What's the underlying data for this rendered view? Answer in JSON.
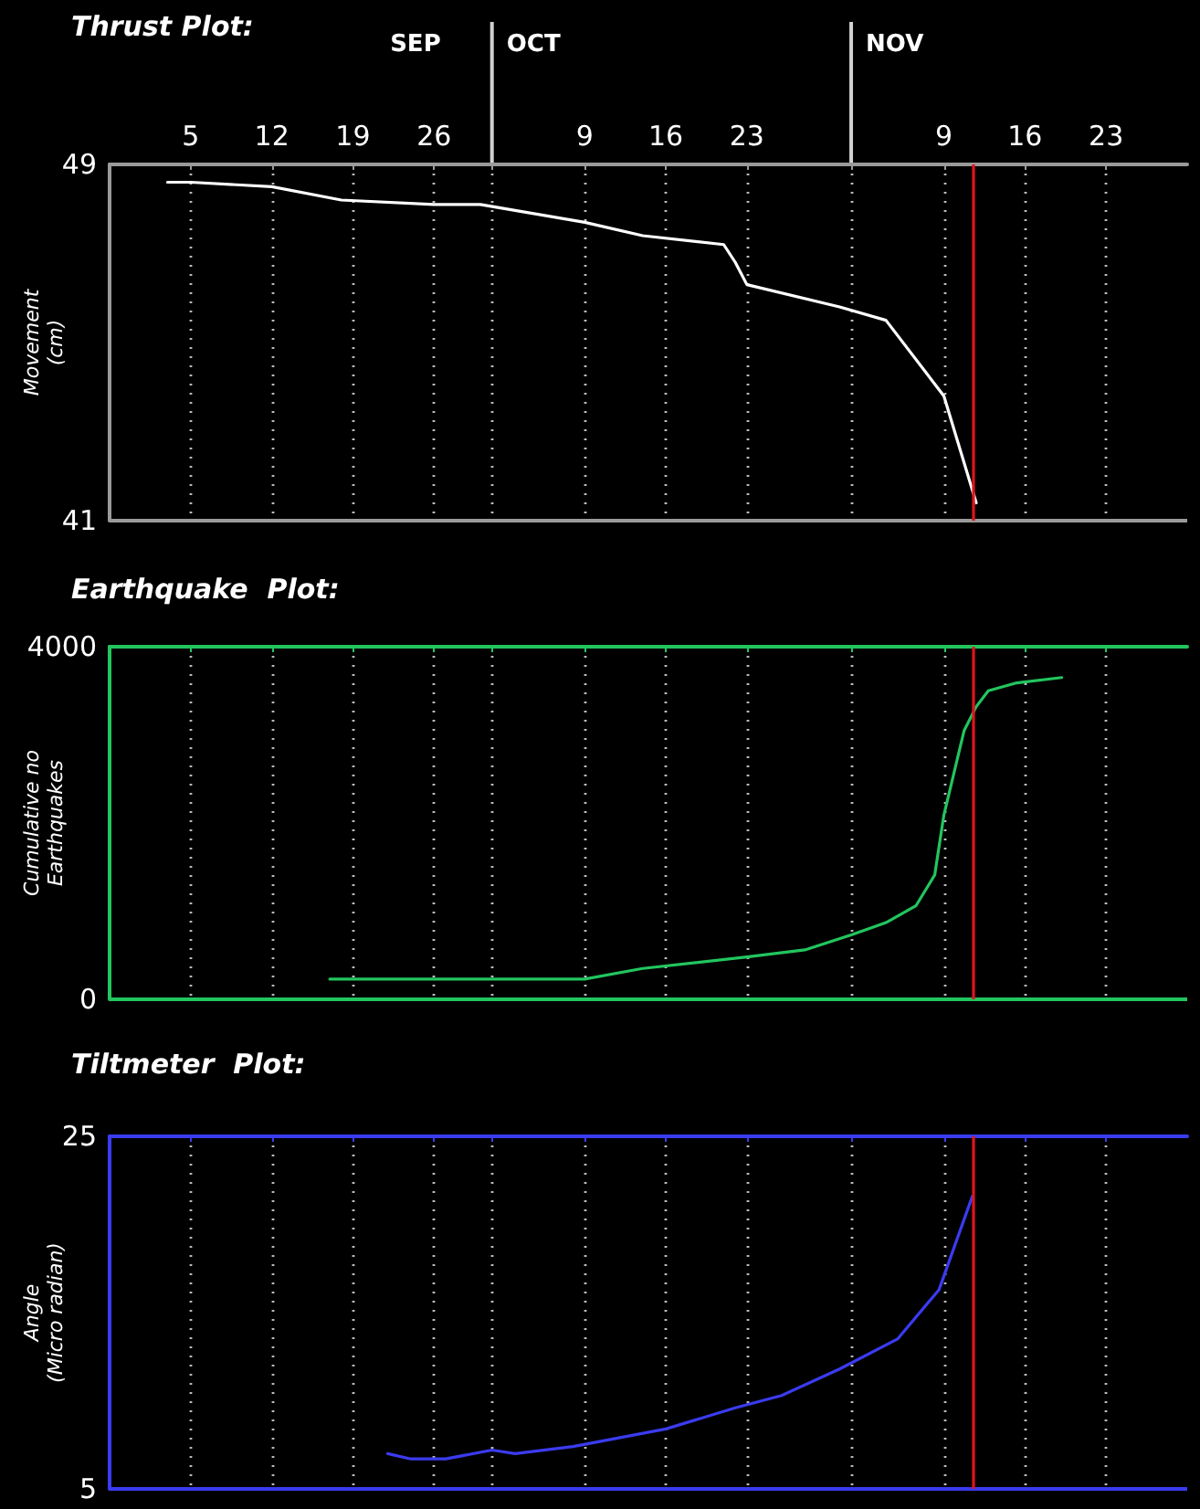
{
  "chart_data": [
    {
      "type": "line",
      "title": "Thrust Plot:",
      "ylabel": "Movement\n(cm)",
      "annotations": [
        "SEP",
        "OCT",
        "NOV"
      ],
      "xlim": [
        "--08-29",
        "--11-30"
      ],
      "xticks": [
        {
          "value": "--09-05",
          "label": "5"
        },
        {
          "value": "--09-12",
          "label": "12"
        },
        {
          "value": "--09-19",
          "label": "19"
        },
        {
          "value": "--09-26",
          "label": "26"
        },
        {
          "value": "--10-01",
          "label": null
        },
        {
          "value": "--10-09",
          "label": "9"
        },
        {
          "value": "--10-16",
          "label": "16"
        },
        {
          "value": "--10-23",
          "label": "23"
        },
        {
          "value": "--11-01",
          "label": null
        },
        {
          "value": "--11-09",
          "label": "9"
        },
        {
          "value": "--11-16",
          "label": "16"
        },
        {
          "value": "--11-23",
          "label": "23"
        }
      ],
      "ylim": [
        41,
        49
      ],
      "yticks": [
        41,
        49
      ],
      "grid": true,
      "marker": "none",
      "line_style": "solid",
      "ref_lines": [
        {
          "axis": "x",
          "value": "--11-11T11:00",
          "color": "#e0141e"
        }
      ],
      "series": [
        {
          "color": "#ffffff",
          "x": [
            "--09-03",
            "--09-05",
            "--09-12",
            "--09-18",
            "--09-26",
            "--09-30",
            "--10-09",
            "--10-14",
            "--10-21",
            "--10-22",
            "--10-23",
            "--10-31",
            "--11-04",
            "--11-09",
            "--11-11T19:00"
          ],
          "values": [
            48.6,
            48.6,
            48.5,
            48.2,
            48.1,
            48.1,
            47.7,
            47.4,
            47.2,
            46.8,
            46.3,
            45.8,
            45.5,
            43.8,
            41.4
          ]
        }
      ]
    },
    {
      "type": "line",
      "title": "Earthquake  Plot:",
      "ylabel": "Cumulative no\nEarthquakes",
      "xlim": [
        "--08-29",
        "--11-30"
      ],
      "xticks": [
        {
          "value": "--09-05",
          "label": null
        },
        {
          "value": "--09-12",
          "label": null
        },
        {
          "value": "--09-19",
          "label": null
        },
        {
          "value": "--09-26",
          "label": null
        },
        {
          "value": "--10-01",
          "label": null
        },
        {
          "value": "--10-09",
          "label": null
        },
        {
          "value": "--10-16",
          "label": null
        },
        {
          "value": "--10-23",
          "label": null
        },
        {
          "value": "--11-01",
          "label": null
        },
        {
          "value": "--11-09",
          "label": null
        },
        {
          "value": "--11-16",
          "label": null
        },
        {
          "value": "--11-23",
          "label": null
        }
      ],
      "ylim": [
        0,
        4000
      ],
      "yticks": [
        0,
        4000
      ],
      "grid": true,
      "tick_labels": "y",
      "marker": "none",
      "line_style": "solid",
      "ref_lines": [
        {
          "axis": "x",
          "value": "--11-11T11:00",
          "color": "#e0141e"
        }
      ],
      "series": [
        {
          "color": "#22c55e",
          "x": [
            "--09-17",
            "--10-09",
            "--10-14",
            "--10-23",
            "--10-28",
            "--11-01",
            "--11-04",
            "--11-06T14:00",
            "--11-08T05:00",
            "--11-09",
            "--11-10T18:00",
            "--11-11T19:00",
            "--11-12T20:00",
            "--11-15T07:00",
            "--11-19T04:00"
          ],
          "values": [
            230,
            230,
            350,
            480,
            560,
            730,
            870,
            1060,
            1410,
            2090,
            3050,
            3320,
            3500,
            3590,
            3650
          ]
        }
      ]
    },
    {
      "type": "line",
      "title": "Tiltmeter  Plot:",
      "ylabel": "Angle\n(Micro radian)",
      "xlim": [
        "--08-29",
        "--11-30"
      ],
      "xticks": [
        {
          "value": "--09-05",
          "label": null
        },
        {
          "value": "--09-12",
          "label": null
        },
        {
          "value": "--09-19",
          "label": null
        },
        {
          "value": "--09-26",
          "label": null
        },
        {
          "value": "--10-01",
          "label": null
        },
        {
          "value": "--10-09",
          "label": null
        },
        {
          "value": "--10-16",
          "label": null
        },
        {
          "value": "--10-23",
          "label": null
        },
        {
          "value": "--11-01",
          "label": null
        },
        {
          "value": "--11-09",
          "label": null
        },
        {
          "value": "--11-16",
          "label": null
        },
        {
          "value": "--11-23",
          "label": null
        }
      ],
      "ylim": [
        5,
        25
      ],
      "yticks": [
        5,
        25
      ],
      "grid": true,
      "tick_labels": "y",
      "marker": "none",
      "line_style": "solid",
      "ref_lines": [
        {
          "axis": "x",
          "value": "--11-11T11:00",
          "color": "#e0141e"
        }
      ],
      "series": [
        {
          "color": "#3b3bf0",
          "x": [
            "--09-22",
            "--09-24",
            "--09-27",
            "--10-01",
            "--10-03",
            "--10-08",
            "--10-16",
            "--10-22",
            "--10-26",
            "--10-31",
            "--11-05",
            "--11-08T14:00",
            "--11-11T11:00"
          ],
          "values": [
            7,
            6.7,
            6.7,
            7.2,
            7,
            7.4,
            8.4,
            9.6,
            10.3,
            11.8,
            13.5,
            16.3,
            21.6
          ]
        }
      ]
    }
  ]
}
